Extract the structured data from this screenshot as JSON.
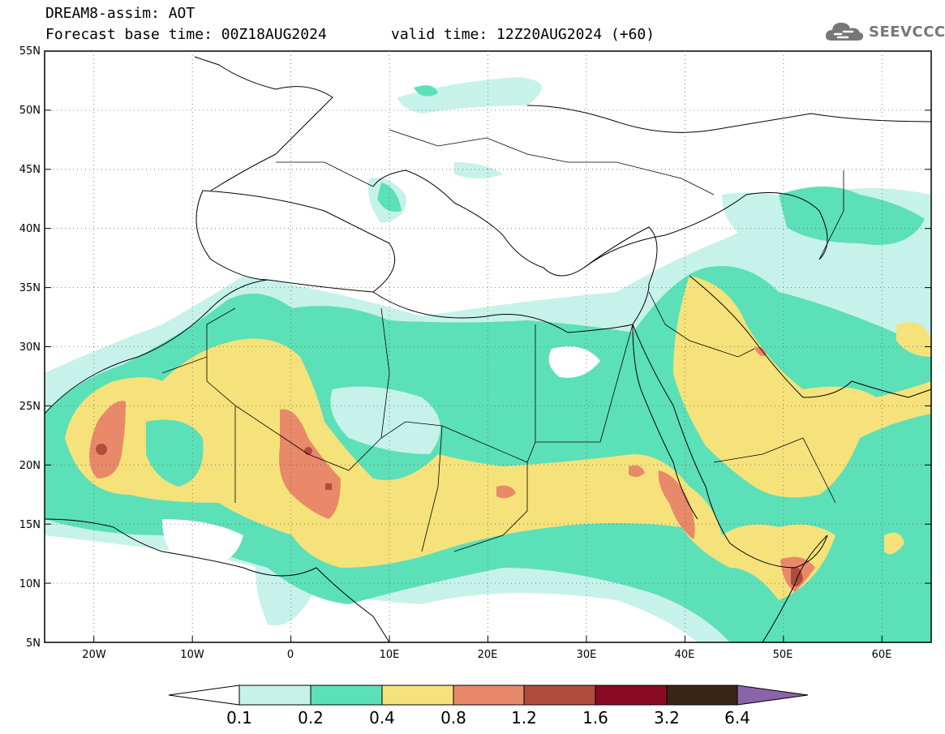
{
  "header": {
    "title": "DREAM8-assim: AOT",
    "base_time": "Forecast base time: 00Z18AUG2024",
    "valid_time": "valid time: 12Z20AUG2024 (+60)"
  },
  "logo": {
    "text": "SEEVCCC",
    "icon": "cloud-icon"
  },
  "map": {
    "lon_range": [
      -25,
      65
    ],
    "lat_range": [
      5,
      55
    ],
    "lat_ticks": [
      "5N",
      "10N",
      "15N",
      "20N",
      "25N",
      "30N",
      "35N",
      "40N",
      "45N",
      "50N",
      "55N"
    ],
    "lon_ticks": [
      "20W",
      "10W",
      "0",
      "10E",
      "20E",
      "30E",
      "40E",
      "50E",
      "60E"
    ]
  },
  "colorbar": {
    "levels": [
      "0.1",
      "0.2",
      "0.4",
      "0.8",
      "1.2",
      "1.6",
      "3.2",
      "6.4"
    ],
    "colors": [
      "#c6f2ea",
      "#5ce0b8",
      "#f5e27a",
      "#e8896a",
      "#b04c3c",
      "#8a0a22",
      "#3a2414",
      "#8a63a8"
    ]
  }
}
